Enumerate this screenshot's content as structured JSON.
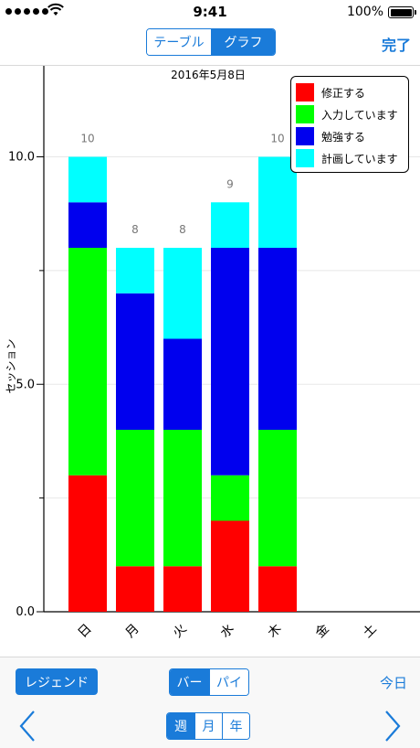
{
  "status_bar": {
    "time": "9:41",
    "battery": "100%"
  },
  "nav": {
    "segments": [
      {
        "label": "テーブル",
        "active": false
      },
      {
        "label": "グラフ",
        "active": true
      }
    ],
    "done_label": "完了"
  },
  "colors": {
    "accent": "#1a7bd9",
    "red": "#ff0000",
    "green": "#00ff00",
    "blue": "#0000ee",
    "cyan": "#00ffff"
  },
  "chart_data": {
    "type": "bar",
    "stacked": true,
    "title": "2016年5月8日",
    "xlabel": "",
    "ylabel": "セッション",
    "ylim": [
      0,
      12
    ],
    "yticks": [
      "0.0",
      "5.0",
      "10.0"
    ],
    "categories": [
      "日",
      "月",
      "火",
      "水",
      "木",
      "金",
      "土"
    ],
    "series": [
      {
        "name": "修正する",
        "color": "#ff0000",
        "values": [
          3,
          1,
          1,
          2,
          1,
          0,
          0
        ]
      },
      {
        "name": "入力しています",
        "color": "#00ff00",
        "values": [
          5,
          3,
          3,
          1,
          3,
          0,
          0
        ]
      },
      {
        "name": "勉強する",
        "color": "#0000ee",
        "values": [
          1,
          3,
          2,
          5,
          4,
          0,
          0
        ]
      },
      {
        "name": "計画しています",
        "color": "#00ffff",
        "values": [
          1,
          1,
          2,
          1,
          2,
          0,
          0
        ]
      }
    ],
    "totals": [
      "10",
      "8",
      "8",
      "9",
      "10",
      "",
      ""
    ],
    "legend_position": "top-right",
    "grid": true
  },
  "toolbar": {
    "legend_label": "レジェンド",
    "chart_types": [
      {
        "label": "バー",
        "active": true
      },
      {
        "label": "パイ",
        "active": false
      }
    ],
    "today_label": "今日",
    "periods": [
      {
        "label": "週",
        "active": true
      },
      {
        "label": "月",
        "active": false
      },
      {
        "label": "年",
        "active": false
      }
    ],
    "prev_icon": "chevron-left-icon",
    "next_icon": "chevron-right-icon"
  }
}
